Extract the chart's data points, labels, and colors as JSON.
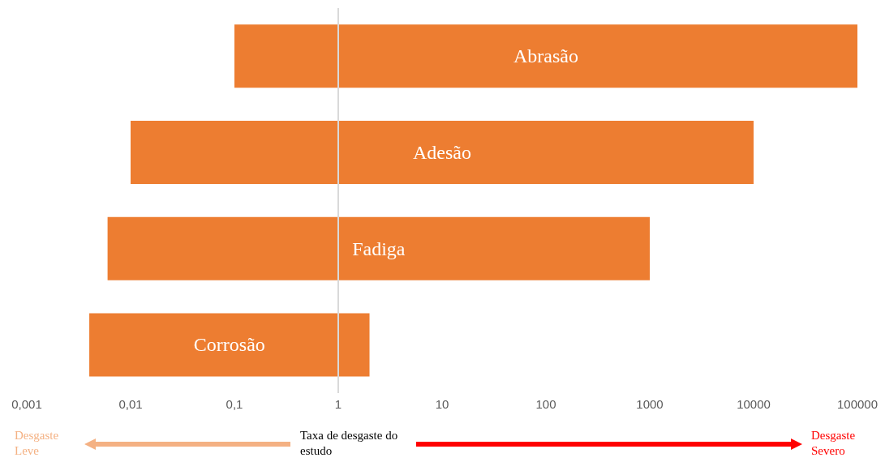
{
  "chart_data": {
    "type": "bar",
    "orientation": "horizontal",
    "log": "x",
    "categories": [
      "Abrasão",
      "Adesão",
      "Fadiga",
      "Corrosão"
    ],
    "base": [
      0.1,
      0.01,
      0.006,
      0.004
    ],
    "values": [
      99999.9,
      9999.99,
      999.994,
      1.996
    ],
    "color": "#ed7d31",
    "xlim": [
      0.001,
      100000
    ],
    "xticks": [
      {
        "value": 0.001,
        "label": "0,001"
      },
      {
        "value": 0.01,
        "label": "0,01"
      },
      {
        "value": 0.1,
        "label": "0,1"
      },
      1,
      10,
      100,
      1000,
      10000,
      100000
    ],
    "grid": false,
    "ref_lines": [
      {
        "axis": "x",
        "value": 1,
        "color": "#d9d9d9"
      }
    ],
    "annotations": [
      "Desgaste Leve",
      "Taxa de desgaste do estudo",
      "Desgaste Severo"
    ]
  }
}
